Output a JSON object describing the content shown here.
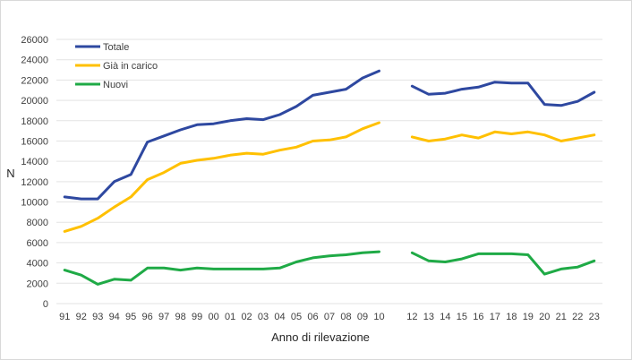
{
  "chart_data": {
    "type": "line",
    "xlabel": "Anno di rilevazione",
    "ylabel": "N",
    "ylim": [
      0,
      26000
    ],
    "yticks": [
      "0",
      "2000",
      "4000",
      "6000",
      "8000",
      "10000",
      "12000",
      "14000",
      "16000",
      "18000",
      "20000",
      "22000",
      "24000",
      "26000"
    ],
    "grid": true,
    "legend_position": "top-left",
    "categories": [
      "91",
      "92",
      "93",
      "94",
      "95",
      "96",
      "97",
      "98",
      "99",
      "00",
      "01",
      "02",
      "03",
      "04",
      "05",
      "06",
      "07",
      "08",
      "09",
      "10",
      "",
      "12",
      "13",
      "14",
      "15",
      "16",
      "17",
      "18",
      "19",
      "20",
      "21",
      "22",
      "23"
    ],
    "series": [
      {
        "name": "Totale",
        "color": "#2e48a0",
        "values": [
          10500,
          10300,
          10300,
          12000,
          12700,
          15900,
          16500,
          17100,
          17600,
          17700,
          18000,
          18200,
          18100,
          18600,
          19400,
          20500,
          20800,
          21100,
          22200,
          22900,
          null,
          21400,
          20600,
          20700,
          21100,
          21300,
          21800,
          21700,
          21700,
          19600,
          19500,
          19900,
          20800
        ]
      },
      {
        "name": "Già in carico",
        "color": "#ffc000",
        "values": [
          7100,
          7600,
          8400,
          9500,
          10500,
          12200,
          12900,
          13800,
          14100,
          14300,
          14600,
          14800,
          14700,
          15100,
          15400,
          16000,
          16100,
          16400,
          17200,
          17800,
          null,
          16400,
          16000,
          16200,
          16600,
          16300,
          16900,
          16700,
          16900,
          16600,
          16000,
          16300,
          16600
        ]
      },
      {
        "name": "Nuovi",
        "color": "#1faa46",
        "values": [
          3300,
          2800,
          1900,
          2400,
          2300,
          3500,
          3500,
          3300,
          3500,
          3400,
          3400,
          3400,
          3400,
          3500,
          4100,
          4500,
          4700,
          4800,
          5000,
          5100,
          null,
          5000,
          4200,
          4100,
          4400,
          4900,
          4900,
          4900,
          4800,
          2900,
          3400,
          3600,
          4200
        ]
      }
    ]
  }
}
